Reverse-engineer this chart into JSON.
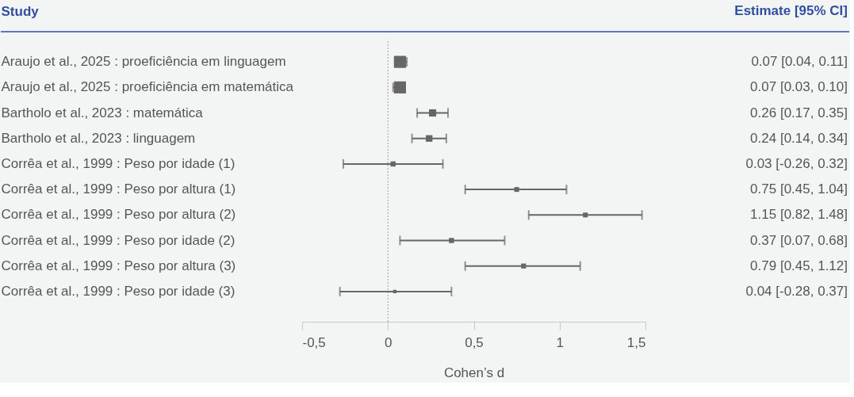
{
  "chart_data": {
    "type": "bubble",
    "marker": "square",
    "ylabel": "Study",
    "xlabel": "Cohen’s d",
    "annotations": [
      "Estimate [95% CI]"
    ],
    "categories": [
      "Araujo et al., 2025 : proeficiência em linguagem",
      "Araujo et al., 2025 : proeficiência em matemática",
      "Bartholo et al., 2023 : matemática",
      "Bartholo et al., 2023 : linguagem",
      "Corrêa et al., 1999 : Peso por idade (1)",
      "Corrêa et al., 1999 : Peso por altura (1)",
      "Corrêa et al., 1999 : Peso por altura (2)",
      "Corrêa et al., 1999 : Peso por idade (2)",
      "Corrêa et al., 1999 : Peso por altura (3)",
      "Corrêa et al., 1999 : Peso por idade (3)"
    ],
    "series": [
      {
        "color": "#666666",
        "values": [
          0.07,
          0.07,
          0.26,
          0.24,
          0.03,
          0.75,
          1.15,
          0.37,
          0.79,
          0.04
        ],
        "errors": [
          [
            0.04,
            0.11
          ],
          [
            0.03,
            0.1
          ],
          [
            0.17,
            0.35
          ],
          [
            0.14,
            0.34
          ],
          [
            -0.26,
            0.32
          ],
          [
            0.45,
            1.04
          ],
          [
            0.82,
            1.48
          ],
          [
            0.07,
            0.68
          ],
          [
            0.45,
            1.12
          ],
          [
            -0.28,
            0.37
          ]
        ],
        "sizes": [
          1,
          1,
          0.36,
          0.3,
          0.18,
          0.16,
          0.16,
          0.18,
          0.17,
          0.08
        ],
        "value_labels": [
          "0.07 [0.04, 0.11]",
          "0.07 [0.03, 0.10]",
          "0.26 [0.17, 0.35]",
          "0.24 [0.14, 0.34]",
          "0.03 [-0.26, 0.32]",
          "0.75 [0.45, 1.04]",
          "1.15 [0.82, 1.48]",
          "0.37 [0.07, 0.68]",
          "0.79 [0.45, 1.12]",
          "0.04 [-0.28, 0.37]"
        ]
      }
    ],
    "xlim": [
      -0.5,
      1.5
    ],
    "orientation": "horizontal",
    "xticks": [
      {
        "value": -0.5,
        "label": "-0,5"
      },
      {
        "value": 0,
        "label": "0"
      },
      {
        "value": 0.5,
        "label": "0,5"
      },
      {
        "value": 1,
        "label": "1"
      },
      {
        "value": 1.5,
        "label": "1,5"
      }
    ],
    "ref_lines": [
      {
        "axis": "x",
        "value": 0,
        "color": "#bbbbbb",
        "line_style": "dotted"
      }
    ],
    "grid": false
  }
}
